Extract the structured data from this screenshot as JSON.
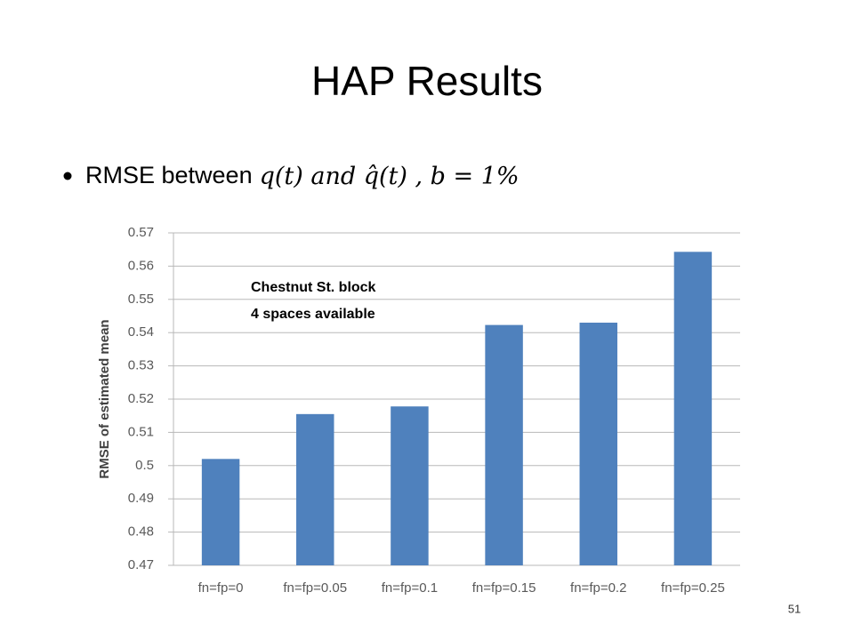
{
  "slide": {
    "title": "HAP Results",
    "bullet": {
      "text": "RMSE between",
      "math": "q(t) and q̂(t) , b = 1%"
    },
    "page_number": "51"
  },
  "chart_data": {
    "type": "bar",
    "y_label": "RMSE of estimated mean",
    "annotation": [
      "Chestnut St. block",
      "4 spaces available"
    ],
    "categories": [
      "fn=fp=0",
      "fn=fp=0.05",
      "fn=fp=0.1",
      "fn=fp=0.15",
      "fn=fp=0.2",
      "fn=fp=0.25"
    ],
    "values": [
      0.502,
      0.5155,
      0.5178,
      0.5423,
      0.543,
      0.5643
    ],
    "color": "#4f81bd",
    "ylim": [
      0.47,
      0.57
    ],
    "yticks": [
      0.47,
      0.48,
      0.49,
      0.5,
      0.51,
      0.52,
      0.53,
      0.54,
      0.55,
      0.56,
      0.57
    ],
    "grid": true
  }
}
